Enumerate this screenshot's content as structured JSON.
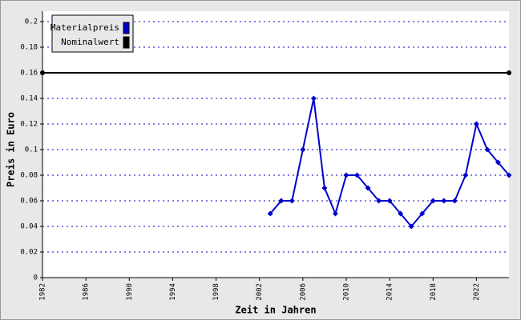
{
  "chart_data": {
    "type": "line",
    "x_label": "Zeit in Jahren",
    "y_label": "Preis in Euro",
    "xlim": [
      1982,
      2025
    ],
    "xticks": [
      1982,
      1986,
      1990,
      1994,
      1998,
      2002,
      2006,
      2010,
      2014,
      2018,
      2022
    ],
    "ylim": [
      0,
      0.2
    ],
    "yticks": [
      0,
      0.02,
      0.04,
      0.06,
      0.08,
      0.1,
      0.12,
      0.14,
      0.16,
      0.18,
      0.2
    ],
    "grid": true,
    "legend": "top-left",
    "series": [
      {
        "name": "Materialpreis",
        "color": "#0000cc",
        "x": [
          2003,
          2004,
          2005,
          2006,
          2007,
          2008,
          2009,
          2010,
          2011,
          2012,
          2013,
          2014,
          2015,
          2016,
          2017,
          2018,
          2019,
          2020,
          2021,
          2022,
          2023,
          2024,
          2025
        ],
        "values": [
          0.05,
          0.06,
          0.06,
          0.1,
          0.14,
          0.07,
          0.05,
          0.08,
          0.08,
          0.07,
          0.06,
          0.06,
          0.05,
          0.04,
          0.05,
          0.06,
          0.06,
          0.06,
          0.08,
          0.12,
          0.1,
          0.09,
          0.08
        ]
      },
      {
        "name": "Nominalwert",
        "color": "#000000",
        "x": [
          1982,
          2025
        ],
        "values": [
          0.16,
          0.16
        ]
      }
    ]
  }
}
